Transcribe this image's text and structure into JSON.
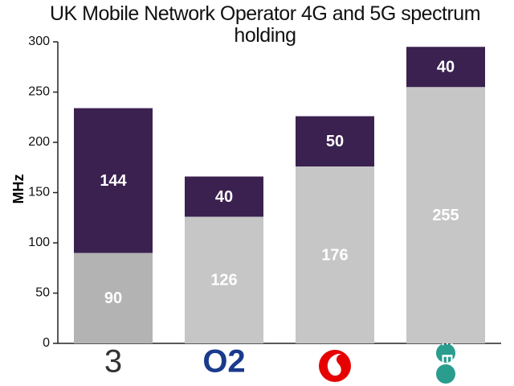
{
  "chart_data": {
    "type": "stacked-bar",
    "title": "UK Mobile Network Operator 4G and 5G spectrum holding",
    "ylabel": "MHz",
    "categories": [
      "3",
      "O2",
      null,
      "EE"
    ],
    "series": [
      {
        "color": "#c6c6c6",
        "colors": [
          "#b3b3b3",
          "#c6c6c6",
          "#c6c6c6",
          "#c6c6c6"
        ],
        "values": [
          90,
          126,
          176,
          255
        ]
      },
      {
        "color": "#3b2150",
        "values": [
          144,
          40,
          50,
          40
        ]
      }
    ],
    "ylim": [
      0,
      300
    ],
    "yticks": [
      0,
      50,
      100,
      150,
      200,
      250,
      300
    ],
    "grid": false
  }
}
